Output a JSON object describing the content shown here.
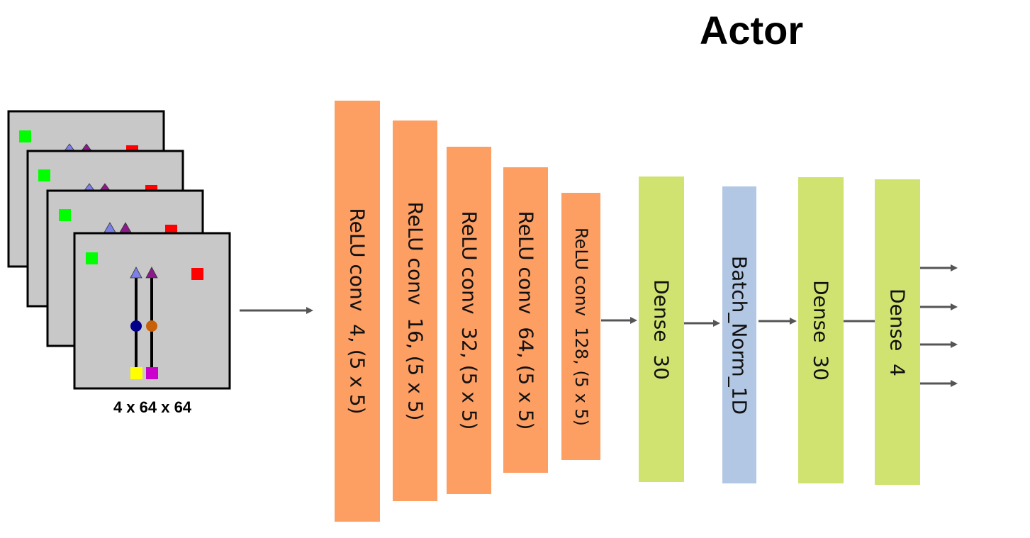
{
  "title": "Actor",
  "input": {
    "caption": "4 x 64 x 64"
  },
  "layers": [
    {
      "label": "ReLU conv  4, (5 x 5)",
      "kind": "conv",
      "color": "#fd9e63"
    },
    {
      "label": "ReLU conv  16, (5 x 5)",
      "kind": "conv",
      "color": "#fd9e63"
    },
    {
      "label": "ReLU conv  32, (5 x 5)",
      "kind": "conv",
      "color": "#fd9e63"
    },
    {
      "label": "ReLU conv  64, (5 x 5)",
      "kind": "conv",
      "color": "#fd9e63"
    },
    {
      "label": "ReLU conv  128, (5 x 5)",
      "kind": "conv",
      "color": "#fd9e63"
    },
    {
      "label": "Dense  30",
      "kind": "dense",
      "color": "#d0e370"
    },
    {
      "label": "Batch_Norm_1D",
      "kind": "norm",
      "color": "#b2c7e4"
    },
    {
      "label": "Dense  30",
      "kind": "dense",
      "color": "#d0e370"
    },
    {
      "label": "Dense  4",
      "kind": "dense",
      "color": "#d0e370"
    }
  ],
  "colors": {
    "frame_fill": "#c8c8c8",
    "frame_border": "#000000",
    "arrow": "#555555",
    "green_square": "#00ff00",
    "red_square": "#ff0000",
    "triangle_light": "#7b7fe6",
    "triangle_dark": "#8b1a8b",
    "dot_blue": "#00008b",
    "dot_orange": "#c8600a",
    "yellow_square": "#ffff00",
    "magenta_square": "#cc00cc"
  }
}
